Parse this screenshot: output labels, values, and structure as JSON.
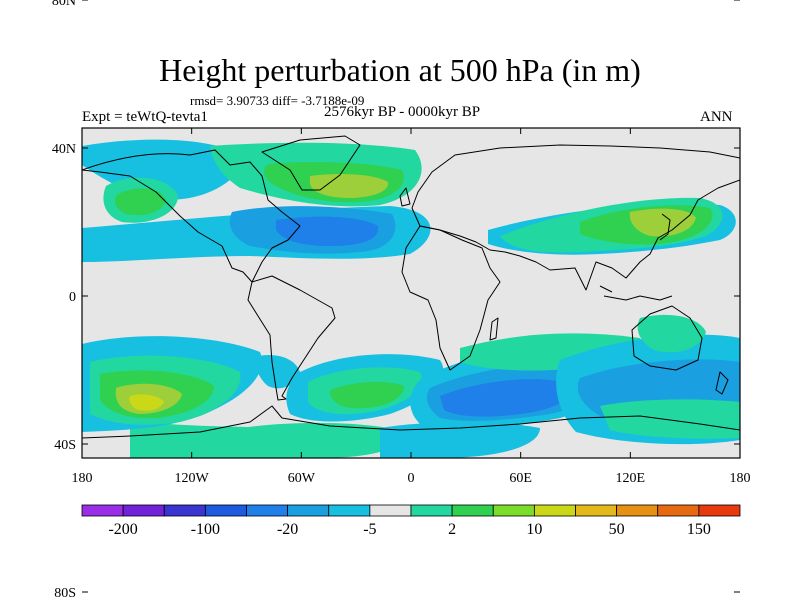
{
  "header": {
    "title": "Height perturbation at 500 hPa (in m)",
    "stats": "rmsd= 3.90733 diff= -3.7188e-09",
    "experiment": "Expt = teWtQ-tevta1",
    "period": "2576kyr BP - 0000kyr BP",
    "season": "ANN"
  },
  "axes": {
    "lat_ticks": [
      "80N",
      "40N",
      "0",
      "40S",
      "80S"
    ],
    "lon_ticks": [
      "180",
      "120W",
      "60W",
      "0",
      "60E",
      "120E",
      "180"
    ]
  },
  "colorbar": {
    "colors": [
      "#9a2ee8",
      "#7222d8",
      "#3a34d0",
      "#1f5be0",
      "#1e80e8",
      "#1aa0e0",
      "#17c0e0",
      "#e6e6e6",
      "#22d8a0",
      "#30d050",
      "#7cdc2a",
      "#cad818",
      "#e2b81a",
      "#e69014",
      "#e86a10",
      "#e83a10"
    ],
    "labels": [
      "-200",
      "-100",
      "-20",
      "-5",
      "2",
      "10",
      "50",
      "150"
    ]
  },
  "field_colors": {
    "neutral": "#e6e6e6",
    "neg1": "#17c0e0",
    "neg2": "#1aa0e0",
    "neg3": "#1e80e8",
    "pos1": "#22d8a0",
    "pos2": "#30d050",
    "pos3": "#9ccf3a",
    "pos4": "#cad818"
  }
}
